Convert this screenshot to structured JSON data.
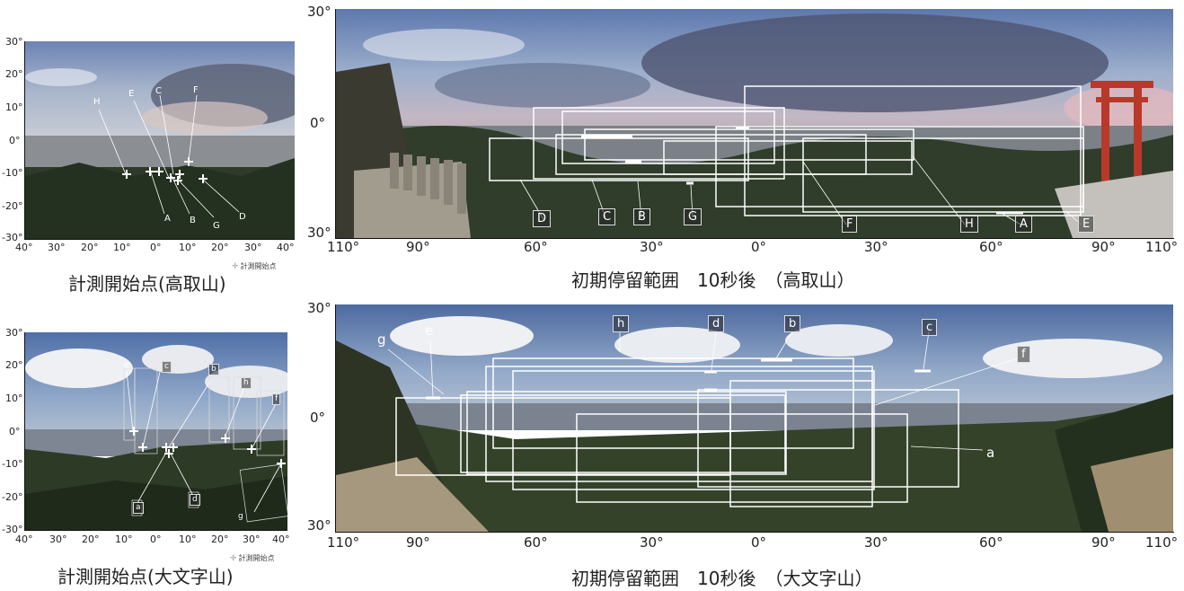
{
  "panels": {
    "top_left": {
      "caption": "計測開始点(高取山)",
      "legend_note": "計測開始点",
      "y_ticks": [
        "30°",
        "20°",
        "10°",
        "0°",
        "-10°",
        "-20°",
        "-30°"
      ],
      "x_ticks": [
        "40°",
        "30°",
        "20°",
        "10°",
        "0°",
        "10°",
        "20°",
        "30°",
        "40°"
      ],
      "labels_top": [
        "H",
        "E",
        "C",
        "F"
      ],
      "labels_bottom": [
        "A",
        "B",
        "G",
        "D"
      ]
    },
    "top_right": {
      "caption": "初期停留範囲　10秒後　（高取山）",
      "y_ticks": [
        "30°",
        "0°",
        "30°"
      ],
      "x_ticks": [
        "110°",
        "90°",
        "60°",
        "30°",
        "0°",
        "30°",
        "60°",
        "90°",
        "110°"
      ],
      "box_labels": [
        "D",
        "C",
        "B",
        "G",
        "F",
        "H",
        "A",
        "E"
      ]
    },
    "bottom_left": {
      "caption": "計測開始点(大文字山)",
      "legend_note": "計測開始点",
      "y_ticks": [
        "30°",
        "20°",
        "10°",
        "0°",
        "-10°",
        "-20°",
        "-30°"
      ],
      "x_ticks": [
        "40°",
        "30°",
        "20°",
        "10°",
        "0°",
        "10°",
        "20°",
        "30°",
        "40°"
      ],
      "labels": [
        "e",
        "c",
        "b",
        "h",
        "f",
        "a",
        "d",
        "g"
      ]
    },
    "bottom_right": {
      "caption": "初期停留範囲　10秒後　（大文字山）",
      "y_ticks": [
        "30°",
        "0°",
        "30°"
      ],
      "x_ticks": [
        "110°",
        "90°",
        "60°",
        "30°",
        "0°",
        "30°",
        "60°",
        "90°",
        "110°"
      ],
      "box_labels": [
        "g",
        "e",
        "h",
        "d",
        "b",
        "c",
        "f",
        "a"
      ]
    }
  },
  "colors": {
    "sky_top": "#6f86b3",
    "sky_mid": "#a7b6cf",
    "cloud": "#e8e9ee",
    "city": "#7a7f84",
    "trees": "#2d3a27",
    "ground": "#8f8a7d",
    "torii": "#b8392a",
    "box_stroke": "#ffffff"
  }
}
